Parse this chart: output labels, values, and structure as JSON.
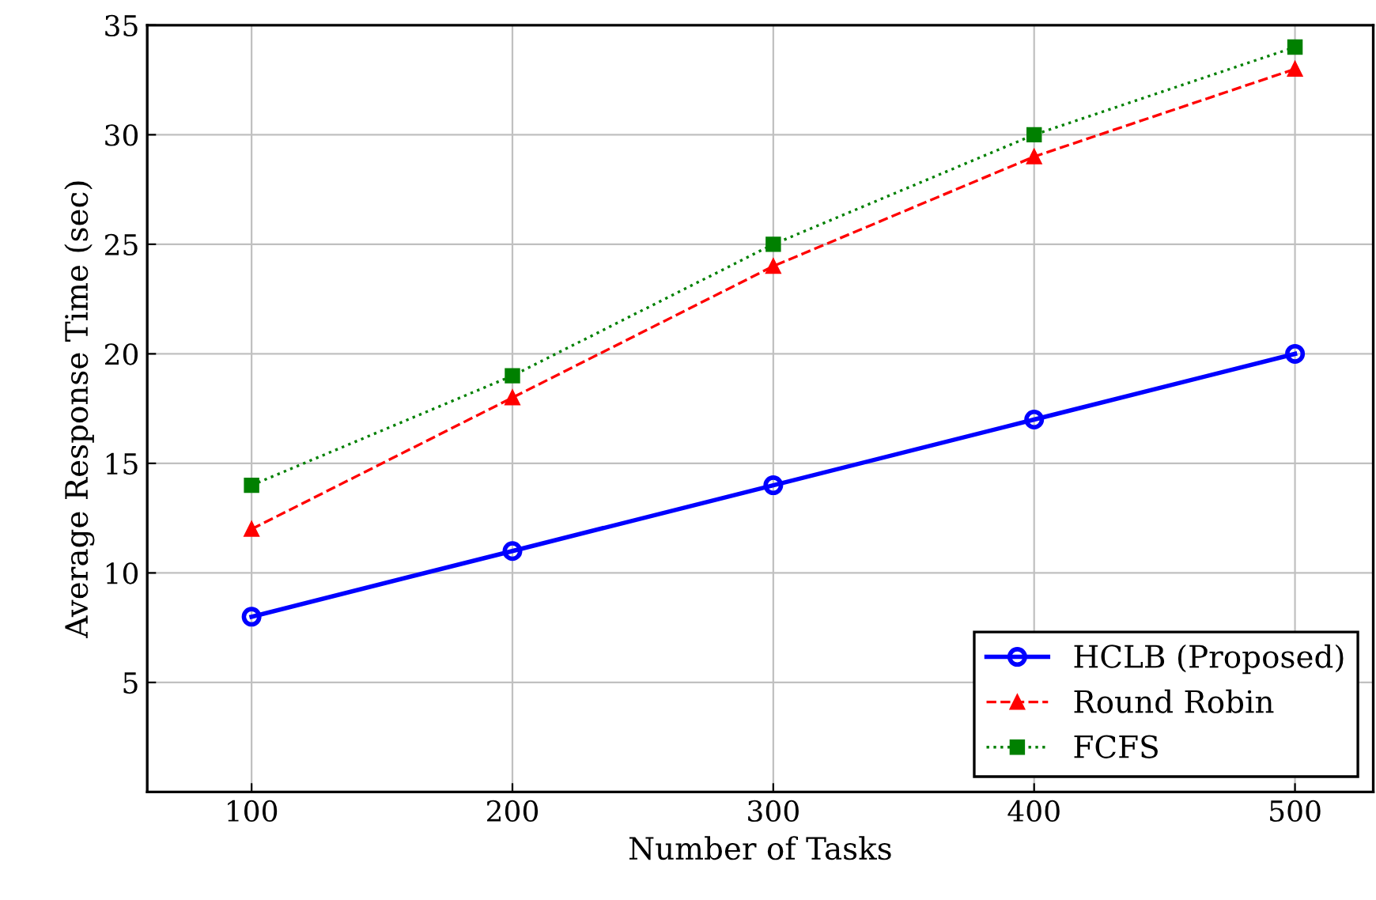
{
  "chart_data": {
    "type": "line",
    "xlabel": "Number of Tasks",
    "ylabel": "Average Response Time (sec)",
    "x": [
      100,
      200,
      300,
      400,
      500
    ],
    "series": [
      {
        "name": "HCLB (Proposed)",
        "color": "#0000ff",
        "values": [
          8,
          11,
          14,
          17,
          20
        ],
        "marker": "circle",
        "line_style": "solid"
      },
      {
        "name": "Round Robin",
        "color": "#ff0000",
        "values": [
          12,
          18,
          24,
          29,
          33
        ],
        "marker": "triangle",
        "line_style": "dashed"
      },
      {
        "name": "FCFS",
        "color": "#008000",
        "values": [
          14,
          19,
          25,
          30,
          34
        ],
        "marker": "square",
        "line_style": "dotted"
      }
    ],
    "xlim": [
      60,
      530
    ],
    "ylim": [
      0,
      35
    ],
    "xticks": [
      100,
      200,
      300,
      400,
      500
    ],
    "yticks": [
      5,
      10,
      15,
      20,
      25,
      30,
      35
    ],
    "grid": true,
    "legend": "bottom right"
  }
}
